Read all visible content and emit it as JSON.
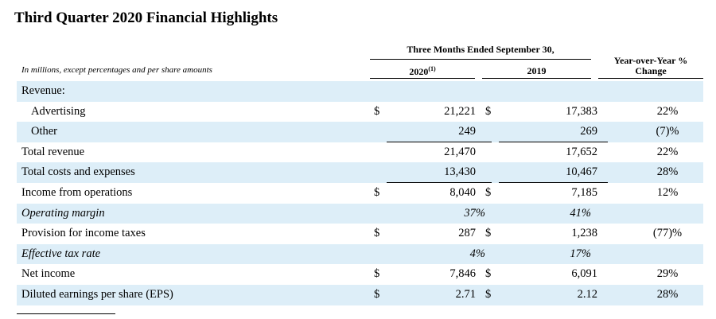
{
  "title": "Third Quarter 2020 Financial Highlights",
  "header": {
    "period_group": "Three Months Ended September 30,",
    "col_2020": "2020",
    "col_2020_footnote": "(1)",
    "col_2019": "2019",
    "col_yoy": "Year-over-Year % Change",
    "note": "In millions, except percentages and per share amounts"
  },
  "rows": [
    {
      "label": "Revenue:",
      "d1": "",
      "v2020": "",
      "d2": "",
      "v2019": "",
      "yoy": ""
    },
    {
      "label": "Advertising",
      "d1": "$",
      "v2020": "21,221",
      "d2": "$",
      "v2019": "17,383",
      "yoy": "22%"
    },
    {
      "label": "Other",
      "d1": "",
      "v2020": "249",
      "d2": "",
      "v2019": "269",
      "yoy": "(7)%"
    },
    {
      "label": "Total revenue",
      "d1": "",
      "v2020": "21,470",
      "d2": "",
      "v2019": "17,652",
      "yoy": "22%"
    },
    {
      "label": "Total costs and expenses",
      "d1": "",
      "v2020": "13,430",
      "d2": "",
      "v2019": "10,467",
      "yoy": "28%"
    },
    {
      "label": "Income from operations",
      "d1": "$",
      "v2020": "8,040",
      "d2": "$",
      "v2019": "7,185",
      "yoy": "12%"
    },
    {
      "label": "Operating margin",
      "v2020": "37%",
      "v2019": "41%"
    },
    {
      "label": "Provision for income taxes",
      "d1": "$",
      "v2020": "287",
      "d2": "$",
      "v2019": "1,238",
      "yoy": "(77)%"
    },
    {
      "label": "Effective tax rate",
      "v2020": "4%",
      "v2019": "17%"
    },
    {
      "label": "Net income",
      "d1": "$",
      "v2020": "7,846",
      "d2": "$",
      "v2019": "6,091",
      "yoy": "29%"
    },
    {
      "label": "Diluted earnings per share (EPS)",
      "d1": "$",
      "v2020": "2.71",
      "d2": "$",
      "v2019": "2.12",
      "yoy": "28%"
    }
  ],
  "colors": {
    "row_shade": "#ddeef8"
  }
}
